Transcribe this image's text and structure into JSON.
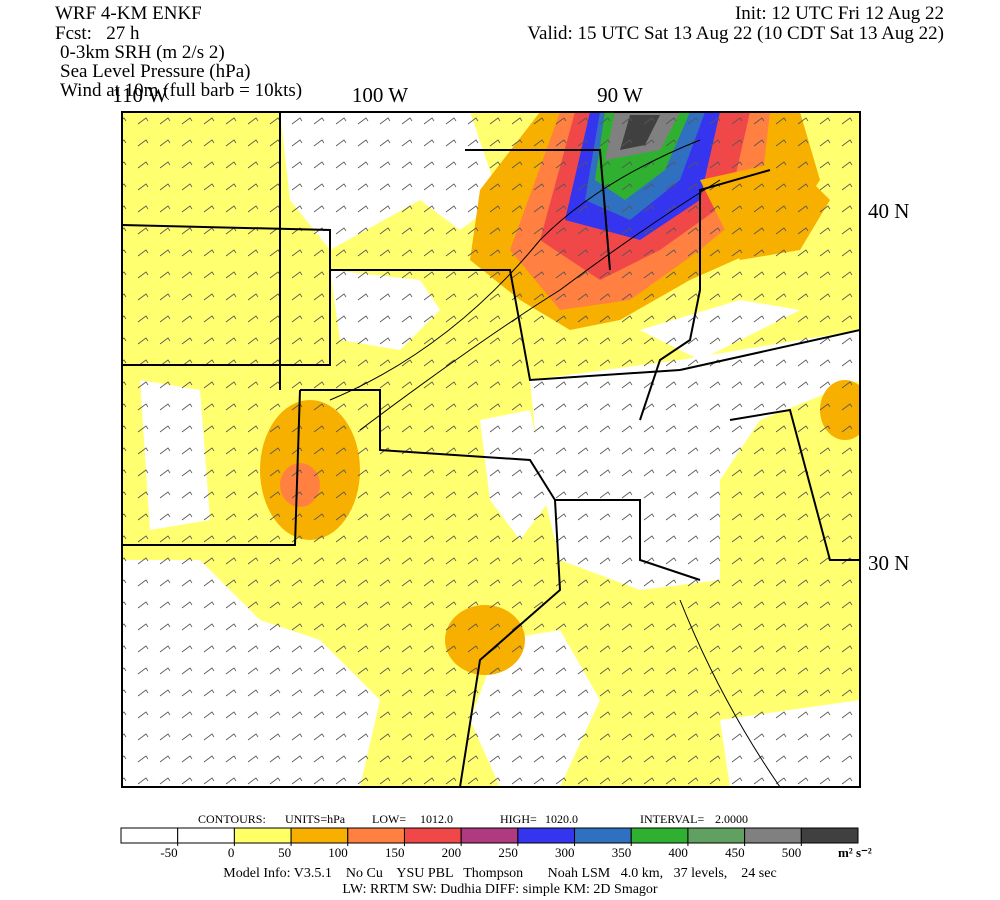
{
  "header": {
    "model": "WRF 4-KM ENKF",
    "forecast": "Fcst:   27 h",
    "field1": "0-3km SRH (m 2/s 2)",
    "field2": "Sea Level Pressure (hPa)",
    "field3": "Wind at 10m (full barb = 10kts)",
    "init": "Init: 12 UTC Fri 12 Aug 22",
    "valid": "Valid: 15 UTC Sat 13 Aug 22 (10 CDT Sat 13 Aug 22)"
  },
  "map_labels": {
    "lon": [
      "110 W",
      "100 W",
      "90 W"
    ],
    "lat": [
      "40 N",
      "30 N"
    ]
  },
  "contours": {
    "label": "CONTOURS:",
    "units": "UNITS=hPa",
    "low_label": "LOW=",
    "low": "1012.0",
    "high_label": "HIGH=",
    "high": "1020.0",
    "interval_label": "INTERVAL=",
    "interval": "2.0000"
  },
  "colorbar": {
    "colors": [
      "#ffffff",
      "#ffffff",
      "#ffff66",
      "#f8b000",
      "#ff8040",
      "#f04848",
      "#b03a80",
      "#3535f0",
      "#3070c0",
      "#30b030",
      "#60a060",
      "#808080",
      "#404040"
    ],
    "ticks": [
      -50,
      0,
      50,
      100,
      150,
      200,
      250,
      300,
      350,
      400,
      450,
      500
    ],
    "units": "m² s⁻²"
  },
  "footer": {
    "line1": "Model Info: V3.5.1    No Cu    YSU PBL   Thompson       Noah LSM   4.0 km,   37 levels,    24 sec",
    "line2": "LW: RRTM  SW: Dudhia   DIFF: simple  KM: 2D Smagor"
  }
}
